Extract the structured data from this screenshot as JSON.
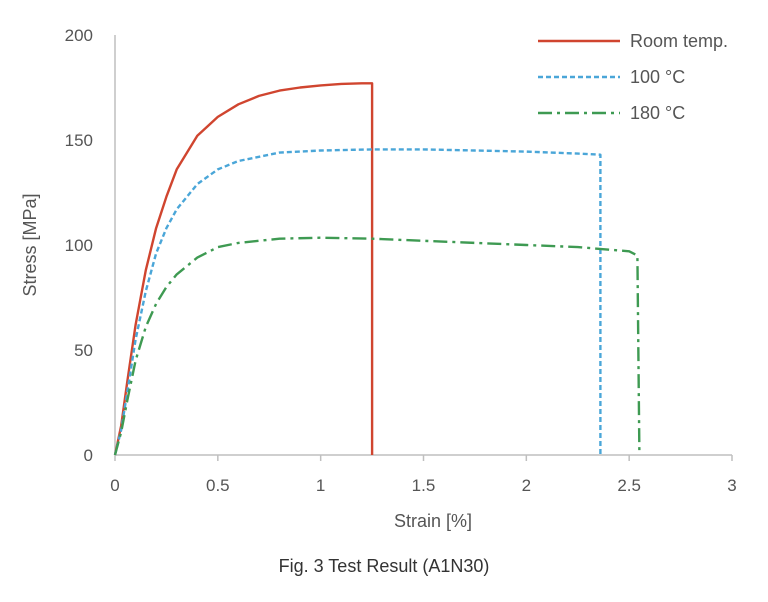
{
  "caption": "Fig. 3 Test Result (A1N30)",
  "chart_data": {
    "type": "line",
    "title": "",
    "xlabel": "Strain [%]",
    "ylabel": "Stress [MPa]",
    "xlim": [
      0,
      3
    ],
    "ylim": [
      0,
      200
    ],
    "xticks": [
      0,
      0.5,
      1,
      1.5,
      2,
      2.5,
      3
    ],
    "xtick_labels": [
      "0",
      "0.5",
      "1",
      "1.5",
      "2",
      "2.5",
      "3"
    ],
    "yticks": [
      0,
      50,
      100,
      150,
      200
    ],
    "ytick_labels": [
      "0",
      "50",
      "100",
      "150",
      "200"
    ],
    "grid": false,
    "legend_position": "top-right",
    "series": [
      {
        "name": "Room temp.",
        "color": "#d0452f",
        "dash": "solid",
        "x": [
          0,
          0.03,
          0.06,
          0.1,
          0.15,
          0.2,
          0.25,
          0.3,
          0.4,
          0.5,
          0.6,
          0.7,
          0.8,
          0.9,
          1.0,
          1.1,
          1.2,
          1.25,
          1.25
        ],
        "y": [
          0,
          14,
          35,
          62,
          88,
          108,
          123,
          136,
          152,
          161,
          167,
          171,
          173.5,
          175,
          176,
          176.7,
          177,
          177,
          0
        ]
      },
      {
        "name": "100 °C",
        "color": "#4aa6d8",
        "dash": "dashed",
        "x": [
          0,
          0.03,
          0.06,
          0.1,
          0.15,
          0.2,
          0.25,
          0.3,
          0.4,
          0.5,
          0.6,
          0.8,
          1.0,
          1.25,
          1.5,
          1.75,
          2.0,
          2.25,
          2.36,
          2.36
        ],
        "y": [
          0,
          12,
          30,
          55,
          78,
          96,
          108,
          117,
          129,
          136,
          140,
          144,
          145,
          145.5,
          145.5,
          145,
          144.5,
          143.5,
          143,
          0
        ]
      },
      {
        "name": "180 °C",
        "color": "#3e9a52",
        "dash": "dash-dot",
        "x": [
          0,
          0.03,
          0.06,
          0.1,
          0.15,
          0.2,
          0.25,
          0.3,
          0.4,
          0.5,
          0.6,
          0.8,
          1.0,
          1.25,
          1.5,
          1.75,
          2.0,
          2.25,
          2.5,
          2.54,
          2.55
        ],
        "y": [
          0,
          11,
          26,
          45,
          61,
          72,
          80,
          86,
          94,
          99,
          101,
          103,
          103.5,
          103,
          102,
          101,
          100,
          99,
          97,
          95,
          0
        ]
      }
    ]
  }
}
